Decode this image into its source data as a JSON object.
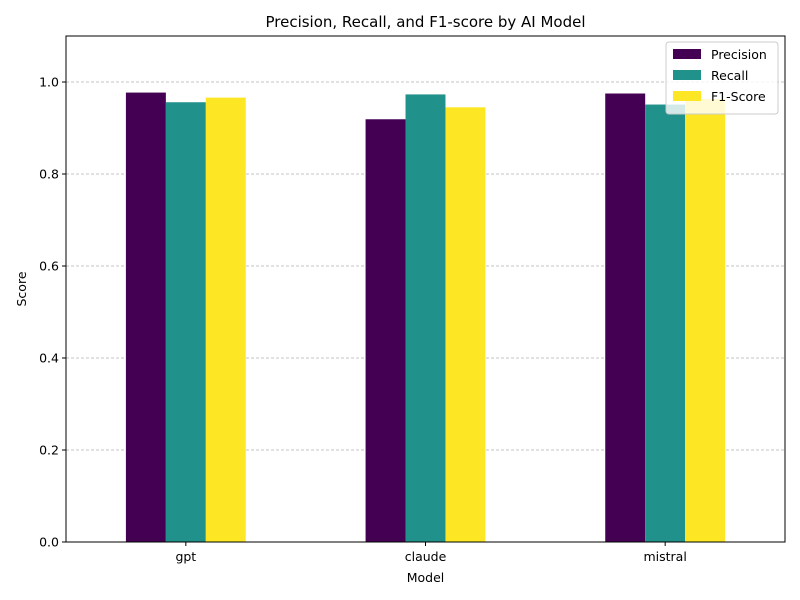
{
  "chart_data": {
    "type": "bar",
    "title": "Precision, Recall, and F1-score by AI Model",
    "xlabel": "Model",
    "ylabel": "Score",
    "categories": [
      "gpt",
      "claude",
      "mistral"
    ],
    "ylim": [
      0,
      1.1
    ],
    "yticks": [
      "0.0",
      "0.2",
      "0.4",
      "0.6",
      "0.8",
      "1.0"
    ],
    "grid": "y-dashed",
    "legend_position": "top-right",
    "series": [
      {
        "name": "Precision",
        "color": "#440154",
        "values": [
          0.977,
          0.919,
          0.975
        ]
      },
      {
        "name": "Recall",
        "color": "#21918c",
        "values": [
          0.956,
          0.973,
          0.951
        ]
      },
      {
        "name": "F1-Score",
        "color": "#fde725",
        "values": [
          0.966,
          0.945,
          0.963
        ]
      }
    ]
  }
}
